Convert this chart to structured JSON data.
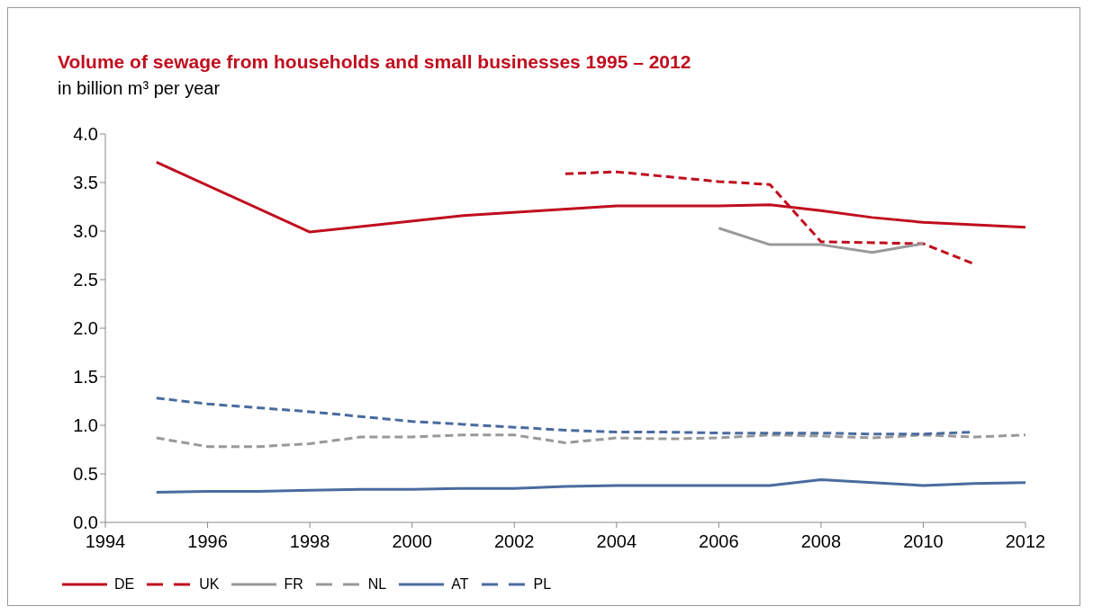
{
  "chart_data": {
    "type": "line",
    "title": "Volume of sewage from households and small businesses 1995 – 2012",
    "subtitle": "in billion m³ per year",
    "xlim": [
      1994,
      2012
    ],
    "xticks": [
      1994,
      1996,
      1998,
      2000,
      2002,
      2004,
      2006,
      2008,
      2010,
      2012
    ],
    "ylim": [
      0,
      4
    ],
    "yticks": [
      {
        "value": 0,
        "label": "0.0"
      },
      {
        "value": 0.5,
        "label": "0.5"
      },
      {
        "value": 1,
        "label": "1.0"
      },
      {
        "value": 1.5,
        "label": "1.5"
      },
      {
        "value": 2,
        "label": "2.0"
      },
      {
        "value": 2.5,
        "label": "2.5"
      },
      {
        "value": 3,
        "label": "3.0"
      },
      {
        "value": 3.5,
        "label": "3.5"
      },
      {
        "value": 4,
        "label": "4.0"
      }
    ],
    "grid": false,
    "legend": "bottom left",
    "marker": "none",
    "series": [
      {
        "name": "DE",
        "color": "#c00d1e",
        "line_style": "solid",
        "x": [
          1995,
          1998,
          2001,
          2004,
          2006,
          2007,
          2008,
          2009,
          2010,
          2012
        ],
        "values": [
          3.71,
          2.99,
          3.16,
          3.26,
          3.26,
          3.27,
          3.21,
          3.14,
          3.09,
          3.04
        ]
      },
      {
        "name": "UK",
        "color": "#c00d1e",
        "line_style": "dashed",
        "x": [
          2003,
          2004,
          2006,
          2007,
          2008,
          2010,
          2011
        ],
        "values": [
          3.59,
          3.61,
          3.51,
          3.48,
          2.89,
          2.87,
          2.66
        ]
      },
      {
        "name": "FR",
        "color": "#999999",
        "line_style": "solid",
        "x": [
          2006,
          2007,
          2008,
          2009,
          2010
        ],
        "values": [
          3.03,
          2.86,
          2.86,
          2.78,
          2.87
        ]
      },
      {
        "name": "NL",
        "color": "#999999",
        "line_style": "dashed",
        "x": [
          1995,
          1996,
          1997,
          1998,
          1999,
          2000,
          2001,
          2002,
          2003,
          2004,
          2005,
          2006,
          2007,
          2008,
          2009,
          2010,
          2011,
          2012
        ],
        "values": [
          0.87,
          0.78,
          0.78,
          0.81,
          0.88,
          0.88,
          0.9,
          0.9,
          0.82,
          0.87,
          0.86,
          0.87,
          0.9,
          0.89,
          0.87,
          0.9,
          0.88,
          0.9
        ]
      },
      {
        "name": "AT",
        "color": "#4a6b9f",
        "line_style": "solid",
        "x": [
          1995,
          1996,
          1997,
          1998,
          1999,
          2000,
          2001,
          2002,
          2003,
          2004,
          2005,
          2006,
          2007,
          2008,
          2009,
          2010,
          2011,
          2012
        ],
        "values": [
          0.31,
          0.32,
          0.32,
          0.33,
          0.34,
          0.34,
          0.35,
          0.35,
          0.37,
          0.38,
          0.38,
          0.38,
          0.38,
          0.44,
          0.41,
          0.38,
          0.4,
          0.41
        ]
      },
      {
        "name": "PL",
        "color": "#4a6b9f",
        "line_style": "dashed",
        "x": [
          1995,
          1996,
          1998,
          2000,
          2001,
          2002,
          2003,
          2004,
          2005,
          2006,
          2007,
          2008,
          2009,
          2010,
          2011
        ],
        "values": [
          1.28,
          1.22,
          1.14,
          1.04,
          1.01,
          0.98,
          0.95,
          0.93,
          0.93,
          0.92,
          0.92,
          0.92,
          0.91,
          0.91,
          0.93
        ]
      }
    ]
  }
}
